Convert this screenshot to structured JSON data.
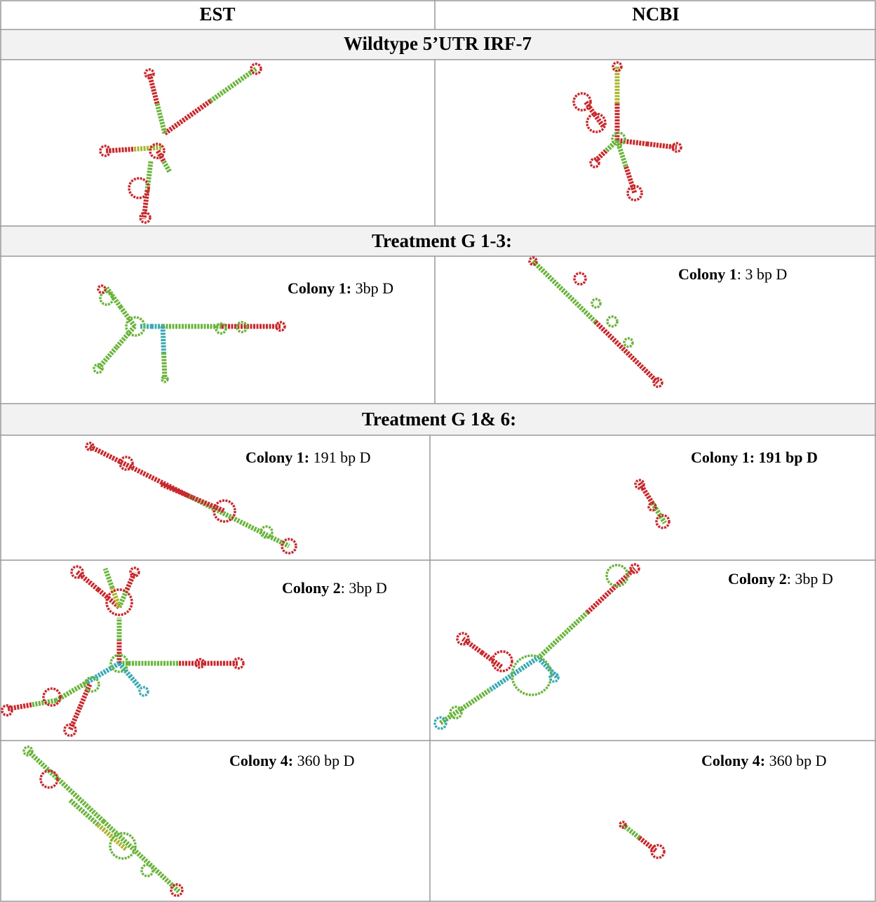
{
  "table": {
    "header": [
      "EST",
      "NCBI"
    ],
    "sections": [
      {
        "title": "Wildtype 5’UTR IRF-7"
      },
      {
        "title": "Treatment G 1-3:",
        "rows": [
          [
            {
              "bold": "Colony 1:",
              "text": " 3bp D"
            },
            {
              "bold": "Colony 1",
              "text": ": 3 bp D"
            }
          ]
        ]
      },
      {
        "title": "Treatment G 1& 6:",
        "rows": [
          [
            {
              "bold": "Colony 1:",
              "text": " 191 bp D"
            },
            {
              "bold": "Colony 1: 191 bp D"
            }
          ],
          [
            {
              "bold": "Colony 2",
              "text": ": 3bp D"
            },
            {
              "bold": "Colony 2",
              "text": ": 3bp D"
            }
          ],
          [
            {
              "bold": "Colony 4:",
              "text": " 360 bp D"
            },
            {
              "bold": "Colony 4:",
              "text": " 360 bp D"
            }
          ]
        ]
      }
    ]
  }
}
